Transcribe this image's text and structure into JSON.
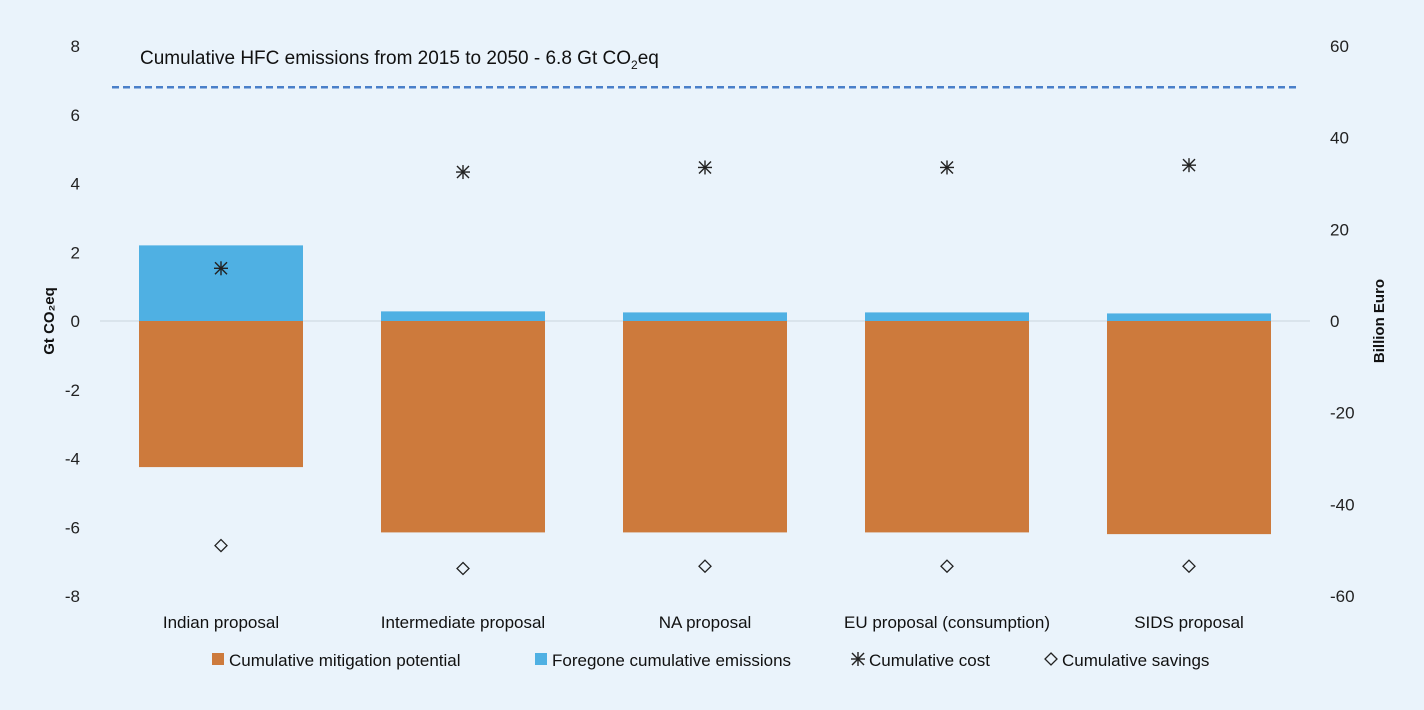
{
  "chart_data": {
    "type": "bar",
    "categories": [
      "Indian proposal",
      "Intermediate proposal",
      "NA proposal",
      "EU proposal (consumption)",
      "SIDS proposal"
    ],
    "left_axis": {
      "label": "Gt CO₂eq",
      "ylim": [
        -8,
        8
      ],
      "ticks": [
        8,
        6,
        4,
        2,
        0,
        -2,
        -4,
        -6,
        -8
      ]
    },
    "right_axis": {
      "label": "Billion Euro",
      "ylim": [
        -60,
        60
      ],
      "ticks": [
        60,
        40,
        20,
        0,
        -20,
        -40,
        -60
      ]
    },
    "series": [
      {
        "name": "Cumulative mitigation potential",
        "kind": "bar",
        "axis": "left",
        "color": "#cd7a3c",
        "values": [
          -4.25,
          -6.15,
          -6.15,
          -6.15,
          -6.2
        ]
      },
      {
        "name": "Foregone cumulative emissions",
        "kind": "bar",
        "axis": "left",
        "color": "#4fb0e3",
        "values": [
          2.2,
          0.28,
          0.25,
          0.25,
          0.22
        ]
      },
      {
        "name": "Cumulative cost",
        "kind": "marker",
        "marker": "asterisk",
        "axis": "right",
        "values": [
          11.5,
          32.5,
          33.5,
          33.5,
          34.0
        ]
      },
      {
        "name": "Cumulative savings",
        "kind": "marker",
        "marker": "diamond",
        "axis": "right",
        "values": [
          -49,
          -54,
          -53.5,
          -53.5,
          -53.5
        ]
      }
    ],
    "reference_line": {
      "value": 6.8,
      "axis": "left",
      "style": "dashed",
      "color": "#4a7fc9",
      "label_main": "Cumulative HFC emissions from 2015 to 2050 - 6.8 Gt CO",
      "label_sub": "2",
      "label_end": "eq"
    },
    "legend": {
      "position": "bottom"
    },
    "grid": false
  }
}
